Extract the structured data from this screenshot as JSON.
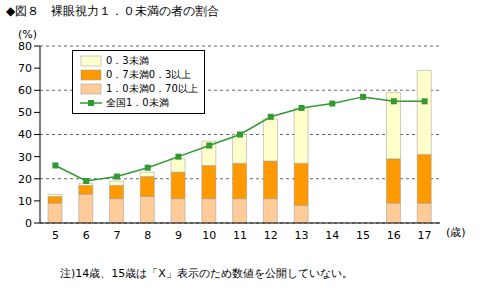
{
  "chart_data": {
    "type": "bar",
    "title": "◆図８　裸眼視力１．０未満の者の割合",
    "y_label": "(%)",
    "x_label": "(歳)",
    "categories": [
      "5",
      "6",
      "7",
      "8",
      "9",
      "10",
      "11",
      "12",
      "13",
      "14",
      "15",
      "16",
      "17"
    ],
    "series": [
      {
        "name": "1．0未満0．70以上",
        "color": "#ffcc99",
        "values": [
          9,
          13,
          11,
          12,
          11,
          11,
          11,
          11,
          8,
          null,
          null,
          9,
          9
        ]
      },
      {
        "name": "0．7未満0．3以上",
        "color": "#ff9900",
        "values": [
          3,
          4,
          6,
          9,
          12,
          15,
          16,
          17,
          19,
          null,
          null,
          20,
          22
        ]
      },
      {
        "name": "0．3未満",
        "color": "#ffffcc",
        "values": [
          1,
          1,
          2,
          2,
          6,
          11,
          13,
          19,
          25,
          null,
          null,
          30,
          38
        ]
      },
      {
        "name": "全国1．0未満",
        "type": "line",
        "color": "#339933",
        "marker": "square",
        "values": [
          26,
          19,
          21,
          25,
          30,
          35,
          40,
          48,
          52,
          54,
          57,
          55,
          55
        ]
      }
    ],
    "stacked": true,
    "ylim": [
      0,
      80
    ],
    "yticks": [
      0,
      10,
      20,
      30,
      40,
      50,
      60,
      70,
      80
    ],
    "grid": true,
    "legend": "upper left",
    "annotations": [
      "注)14歳、15歳は「X」表示のため数値を公開していない。"
    ]
  }
}
